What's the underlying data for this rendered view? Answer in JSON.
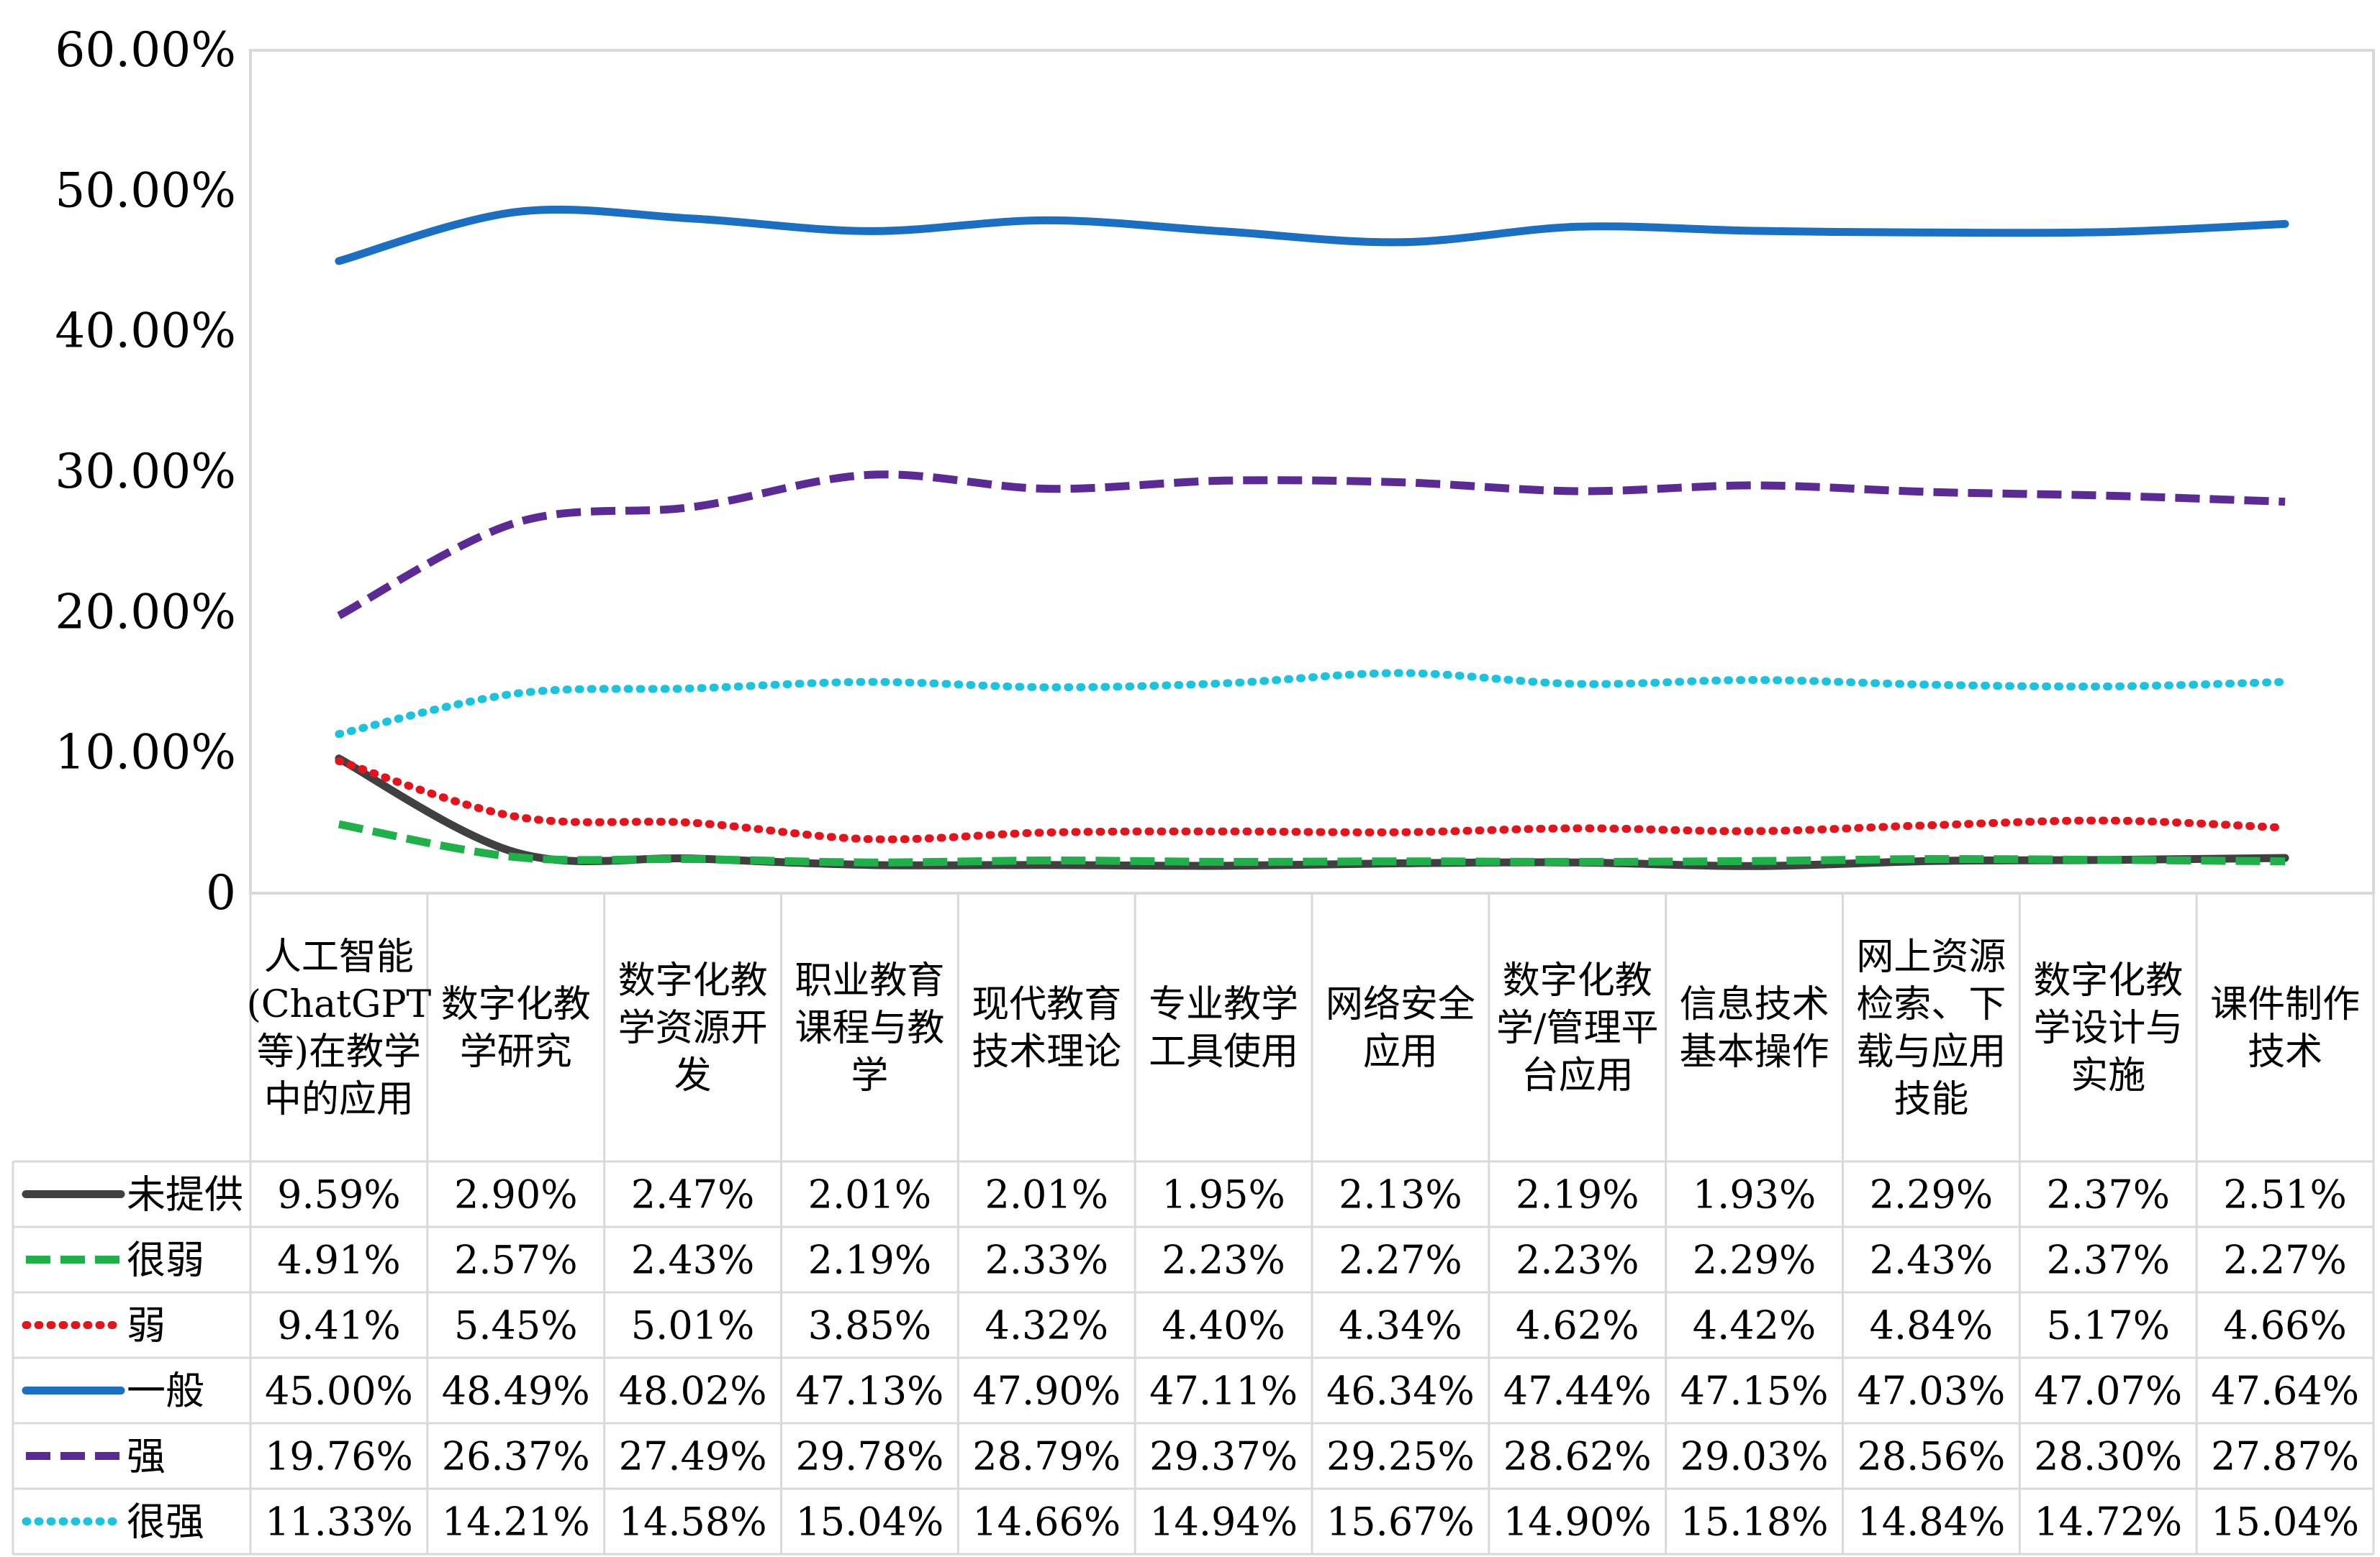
{
  "chart_data": {
    "type": "line",
    "y_tick_labels": [
      "0",
      "10.00%",
      "20.00%",
      "30.00%",
      "40.00%",
      "50.00%",
      "60.00%"
    ],
    "ylim": [
      0,
      60
    ],
    "grid": false,
    "legend_placement": "data table rows below the x axis",
    "categories": [
      "人工智能(ChatGPT等)在教学中的应用",
      "数字化教学研究",
      "数字化教学资源开发",
      "职业教育课程与教学",
      "现代教育技术理论",
      "专业教学工具使用",
      "网络安全应用",
      "数字化教学/管理平台应用",
      "信息技术基本操作",
      "网上资源检索、下载与应用技能",
      "数字化教学设计与实施",
      "课件制作技术"
    ],
    "category_lines": [
      [
        "人工智能",
        "(ChatGPT",
        "等)在教学",
        "中的应用"
      ],
      [
        "数字化教",
        "学研究"
      ],
      [
        "数字化教",
        "学资源开",
        "发"
      ],
      [
        "职业教育",
        "课程与教",
        "学"
      ],
      [
        "现代教育",
        "技术理论"
      ],
      [
        "专业教学",
        "工具使用"
      ],
      [
        "网络安全",
        "应用"
      ],
      [
        "数字化教",
        "学/管理平",
        "台应用"
      ],
      [
        "信息技术",
        "基本操作"
      ],
      [
        "网上资源",
        "检索、下",
        "载与应用",
        "技能"
      ],
      [
        "数字化教",
        "学设计与",
        "实施"
      ],
      [
        "课件制作",
        "技术"
      ]
    ],
    "series": [
      {
        "name": "未提供",
        "color": "#404040",
        "dash": "solid",
        "values": [
          9.59,
          2.9,
          2.47,
          2.01,
          2.01,
          1.95,
          2.13,
          2.19,
          1.93,
          2.29,
          2.37,
          2.51
        ],
        "labels": [
          "9.59%",
          "2.90%",
          "2.47%",
          "2.01%",
          "2.01%",
          "1.95%",
          "2.13%",
          "2.19%",
          "1.93%",
          "2.29%",
          "2.37%",
          "2.51%"
        ]
      },
      {
        "name": "很弱",
        "color": "#1fb04a",
        "dash": "dashed",
        "values": [
          4.91,
          2.57,
          2.43,
          2.19,
          2.33,
          2.23,
          2.27,
          2.23,
          2.29,
          2.43,
          2.37,
          2.27
        ],
        "labels": [
          "4.91%",
          "2.57%",
          "2.43%",
          "2.19%",
          "2.33%",
          "2.23%",
          "2.27%",
          "2.23%",
          "2.29%",
          "2.43%",
          "2.37%",
          "2.27%"
        ]
      },
      {
        "name": "弱",
        "color": "#e3141c",
        "dash": "dotted",
        "values": [
          9.41,
          5.45,
          5.01,
          3.85,
          4.32,
          4.4,
          4.34,
          4.62,
          4.42,
          4.84,
          5.17,
          4.66
        ],
        "labels": [
          "9.41%",
          "5.45%",
          "5.01%",
          "3.85%",
          "4.32%",
          "4.40%",
          "4.34%",
          "4.62%",
          "4.42%",
          "4.84%",
          "5.17%",
          "4.66%"
        ]
      },
      {
        "name": "一般",
        "color": "#1a6fc2",
        "dash": "solid",
        "values": [
          45.0,
          48.49,
          48.02,
          47.13,
          47.9,
          47.11,
          46.34,
          47.44,
          47.15,
          47.03,
          47.07,
          47.64
        ],
        "labels": [
          "45.00%",
          "48.49%",
          "48.02%",
          "47.13%",
          "47.90%",
          "47.11%",
          "46.34%",
          "47.44%",
          "47.15%",
          "47.03%",
          "47.07%",
          "47.64%"
        ]
      },
      {
        "name": "强",
        "color": "#5b2a94",
        "dash": "dashed",
        "values": [
          19.76,
          26.37,
          27.49,
          29.78,
          28.79,
          29.37,
          29.25,
          28.62,
          29.03,
          28.56,
          28.3,
          27.87
        ],
        "labels": [
          "19.76%",
          "26.37%",
          "27.49%",
          "29.78%",
          "28.79%",
          "29.37%",
          "29.25%",
          "28.62%",
          "29.03%",
          "28.56%",
          "28.30%",
          "27.87%"
        ]
      },
      {
        "name": "很强",
        "color": "#1cc3de",
        "dash": "dotted",
        "values": [
          11.33,
          14.21,
          14.58,
          15.04,
          14.66,
          14.94,
          15.67,
          14.9,
          15.18,
          14.84,
          14.72,
          15.04
        ],
        "labels": [
          "11.33%",
          "14.21%",
          "14.58%",
          "15.04%",
          "14.66%",
          "14.94%",
          "15.67%",
          "14.90%",
          "15.18%",
          "14.84%",
          "14.72%",
          "15.04%"
        ]
      }
    ]
  }
}
